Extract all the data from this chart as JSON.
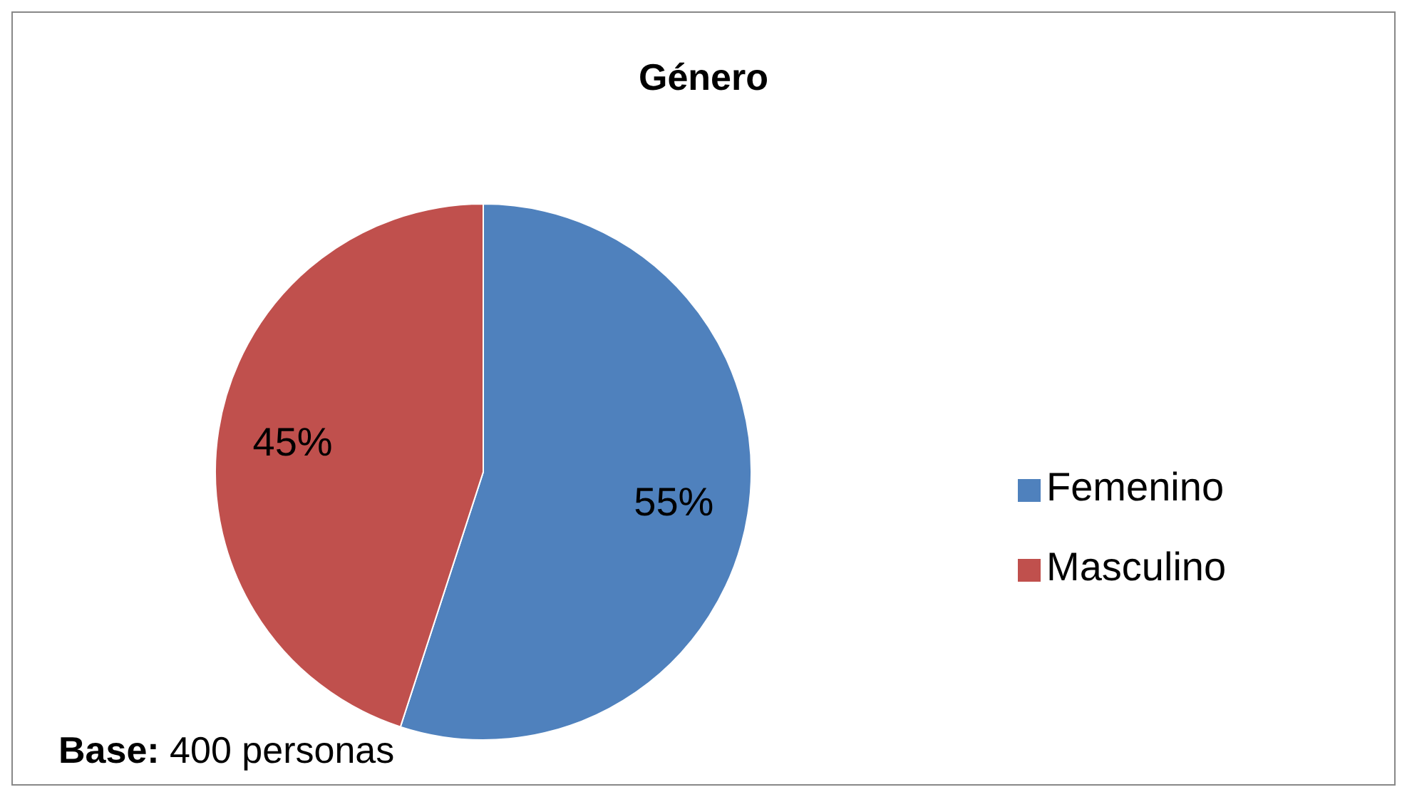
{
  "chart_data": {
    "type": "pie",
    "title": "Género",
    "categories": [
      "Femenino",
      "Masculino"
    ],
    "values": [
      55,
      45
    ],
    "colors": [
      "#4f81bd",
      "#c0504d"
    ],
    "value_labels": [
      "55%",
      "45%"
    ],
    "legend": "right",
    "annotations": [
      "Base: 400 personas"
    ]
  }
}
